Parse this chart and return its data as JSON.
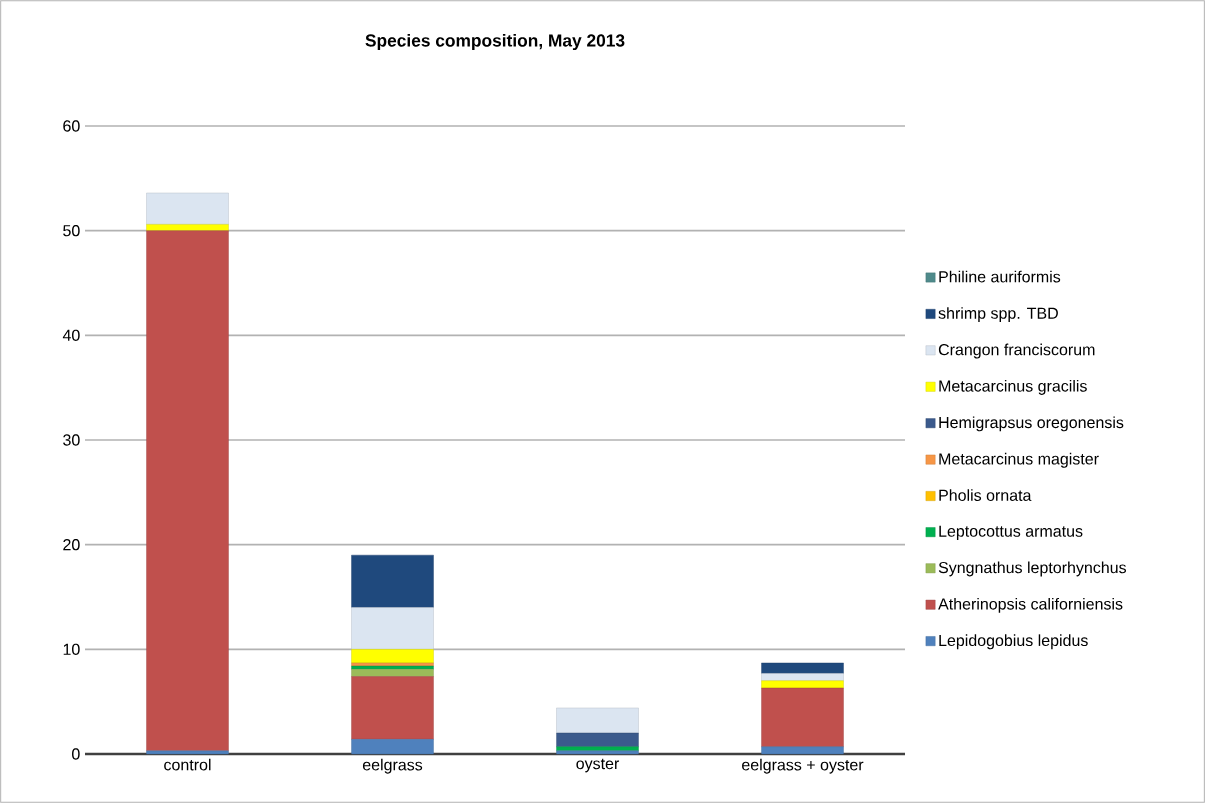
{
  "chart_data": {
    "type": "bar",
    "title": "Species composition, May 2013",
    "stacked": true,
    "categories": [
      "control",
      "eelgrass",
      "oyster",
      "eelgrass + oyster"
    ],
    "series": [
      {
        "name": "Lepidogobius lepidus",
        "color": "#4f81bd",
        "values": [
          0.3,
          1.4,
          0.3,
          0.7
        ]
      },
      {
        "name": "Atherinopsis californiensis",
        "color": "#c0504d",
        "values": [
          49.7,
          6.0,
          0,
          5.6
        ]
      },
      {
        "name": "Syngnathus leptorhynchus",
        "color": "#9bbb59",
        "values": [
          0,
          0.7,
          0,
          0
        ]
      },
      {
        "name": "Leptocottus armatus",
        "color": "#00b050",
        "values": [
          0,
          0.3,
          0.4,
          0
        ]
      },
      {
        "name": "Pholis ornata",
        "color": "#ffc000",
        "values": [
          0,
          0,
          0,
          0
        ]
      },
      {
        "name": "Metacarcinus magister",
        "color": "#f79646",
        "values": [
          0,
          0.3,
          0,
          0
        ]
      },
      {
        "name": "Hemigrapsus oregonensis",
        "color": "#3b5a8c",
        "values": [
          0,
          0,
          1.3,
          0
        ]
      },
      {
        "name": "Metacarcinus gracilis",
        "color": "#ffff00",
        "values": [
          0.6,
          1.3,
          0,
          0.7
        ]
      },
      {
        "name": "Crangon franciscorum",
        "color": "#dbe5f1",
        "values": [
          3.0,
          4.0,
          2.4,
          0.7
        ]
      },
      {
        "name": "shrimp spp. TBD",
        "color": "#1f497d",
        "values": [
          0,
          5.0,
          0,
          1.0
        ]
      },
      {
        "name": "Philine auriformis",
        "color": "#4f8a8b",
        "values": [
          0,
          0,
          0,
          0
        ]
      }
    ],
    "ylim": [
      0,
      60
    ],
    "yticks": [
      0,
      10,
      20,
      30,
      40,
      50,
      60
    ],
    "grid": "y",
    "legend": "right"
  }
}
